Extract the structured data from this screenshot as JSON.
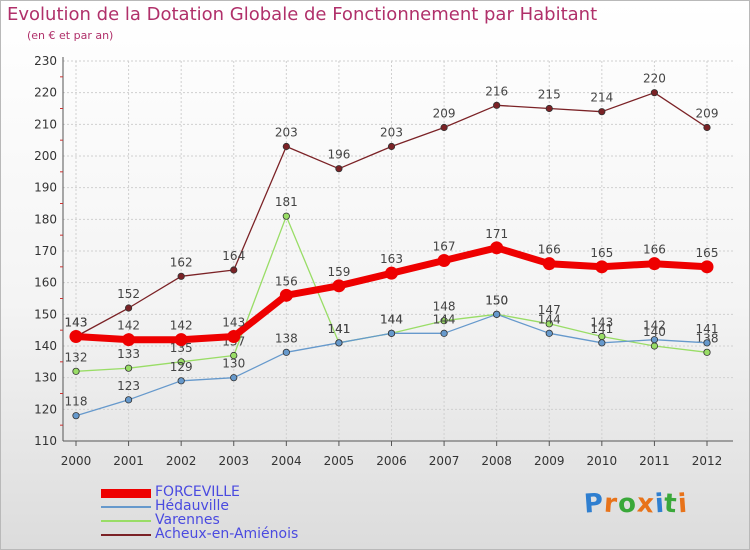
{
  "header": {
    "title": "Evolution de la Dotation Globale de Fonctionnement par Habitant",
    "subtitle": "(en € et par an)"
  },
  "logo": {
    "text": "Proxiti",
    "letters": [
      "P",
      "r",
      "o",
      "x",
      "i",
      "t",
      "i"
    ],
    "colors": [
      "#2f7fd0",
      "#e8731a",
      "#3aa83a",
      "#e8731a",
      "#2f7fd0",
      "#3aa83a",
      "#e8731a"
    ]
  },
  "colors": {
    "grid": "#d0d0d0",
    "axis": "#555555",
    "tick_text": "#333333",
    "label_text": "#444444"
  },
  "chart_data": {
    "type": "line",
    "title": "Evolution de la Dotation Globale de Fonctionnement par Habitant",
    "subtitle": "(en € et par an)",
    "xlabel": "",
    "ylabel": "",
    "x": [
      2000,
      2001,
      2002,
      2003,
      2004,
      2005,
      2006,
      2007,
      2008,
      2009,
      2010,
      2011,
      2012
    ],
    "ylim": [
      110,
      230
    ],
    "yticks": [
      110,
      120,
      130,
      140,
      150,
      160,
      170,
      180,
      190,
      200,
      210,
      220,
      230
    ],
    "grid": true,
    "legend": "bottom-left",
    "series": [
      {
        "name": "Acheux-en-Amiénois",
        "color": "#7b2226",
        "width": 1.3,
        "values": [
          143,
          152,
          162,
          164,
          203,
          196,
          203,
          209,
          216,
          215,
          214,
          220,
          209
        ],
        "labels": [
          "143",
          "152",
          "162",
          "164",
          "203",
          "196",
          "203",
          "209",
          "216",
          "215",
          "214",
          "220",
          "209"
        ]
      },
      {
        "name": "Varennes",
        "color": "#99dd66",
        "width": 1.3,
        "values": [
          132,
          133,
          135,
          137,
          181,
          141,
          144,
          148,
          150,
          147,
          143,
          140,
          138
        ],
        "labels": [
          "132",
          "133",
          "135",
          "137",
          "181",
          "141",
          "144",
          "148",
          "150",
          "147",
          "143",
          "140",
          "138"
        ]
      },
      {
        "name": "Hédauville",
        "color": "#6699cc",
        "width": 1.3,
        "values": [
          118,
          123,
          129,
          130,
          138,
          141,
          144,
          144,
          150,
          144,
          141,
          142,
          141
        ],
        "labels": [
          "118",
          "123",
          "129",
          "130",
          "138",
          "141",
          "144",
          "144",
          "150",
          "144",
          "141",
          "142",
          "141"
        ]
      },
      {
        "name": "FORCEVILLE",
        "color": "#ee0000",
        "width": 7,
        "values": [
          143,
          142,
          142,
          143,
          156,
          159,
          163,
          167,
          171,
          166,
          165,
          166,
          165
        ],
        "labels": [
          "143",
          "142",
          "142",
          "143",
          "156",
          "159",
          "163",
          "167",
          "171",
          "166",
          "165",
          "166",
          "165"
        ]
      }
    ]
  },
  "legend_order": [
    "FORCEVILLE",
    "Hédauville",
    "Varennes",
    "Acheux-en-Amiénois"
  ]
}
